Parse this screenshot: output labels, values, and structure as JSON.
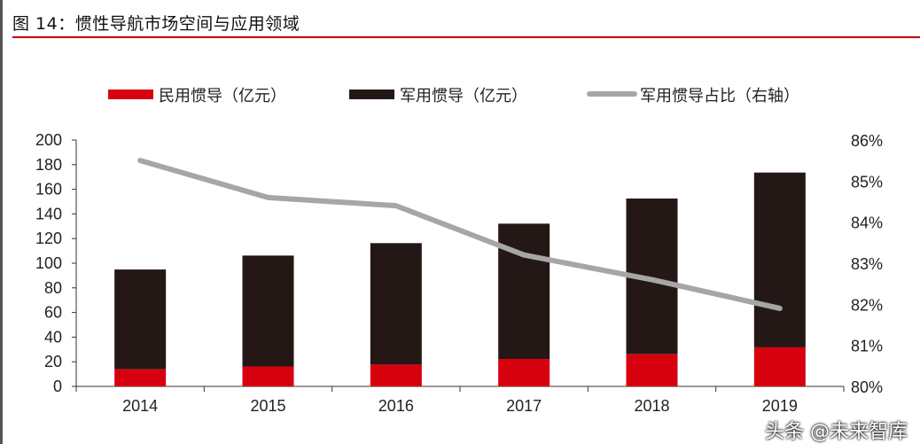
{
  "title": "图 14：惯性导航市场空间与应用领域",
  "watermark": "头条 @未来智库",
  "chart_data": {
    "type": "bar",
    "stacked": true,
    "categories": [
      "2014",
      "2015",
      "2016",
      "2017",
      "2018",
      "2019"
    ],
    "series": [
      {
        "name": "民用惯导（亿元）",
        "type": "bar",
        "axis": "left",
        "color": "#d7000f",
        "values": [
          13.9,
          16.2,
          17.7,
          22.3,
          26.1,
          31.7
        ]
      },
      {
        "name": "军用惯导（亿元）",
        "type": "bar",
        "axis": "left",
        "color": "#231816",
        "values": [
          81.0,
          90.0,
          98.6,
          109.8,
          126.4,
          141.9
        ]
      },
      {
        "name": "军用惯导占比（右轴）",
        "type": "line",
        "axis": "right",
        "color": "#a6a6a6",
        "values": [
          85.5,
          84.6,
          84.4,
          83.2,
          82.6,
          81.9
        ]
      }
    ],
    "ylim": [
      0,
      200
    ],
    "yticks": [
      "0",
      "20",
      "40",
      "60",
      "80",
      "100",
      "120",
      "140",
      "160",
      "180",
      "200"
    ],
    "y2lim": [
      80,
      86
    ],
    "y2ticks": [
      "80%",
      "81%",
      "82%",
      "83%",
      "84%",
      "85%",
      "86%"
    ],
    "legend": "top",
    "grid": false
  }
}
